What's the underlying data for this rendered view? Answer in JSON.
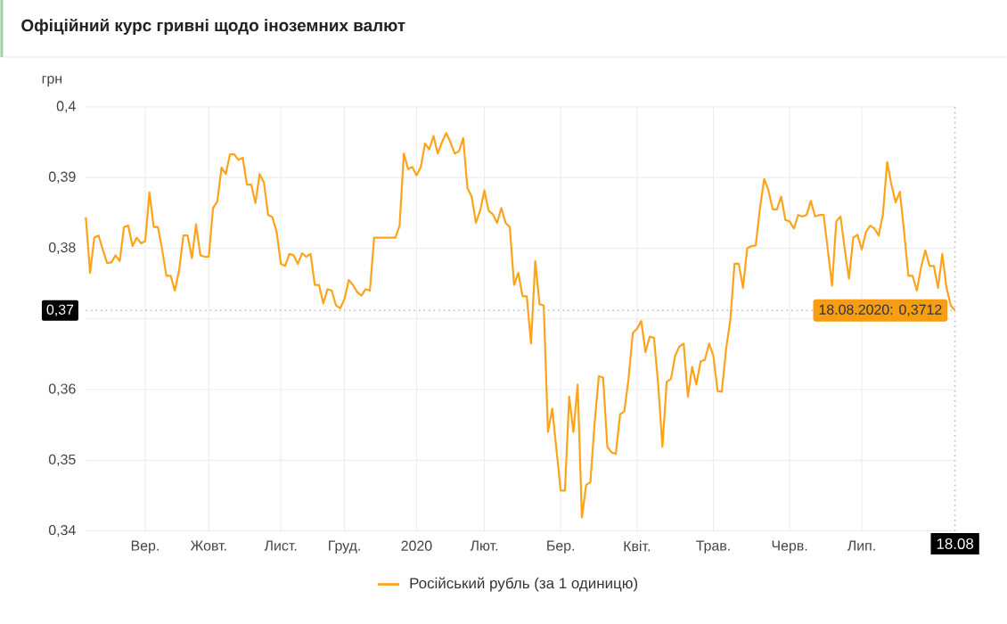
{
  "chart_data": {
    "type": "line",
    "title": "Офіційний курс гривні щодо іноземних валют",
    "ylabel": "грн",
    "ylim": [
      0.34,
      0.4
    ],
    "yticks": [
      {
        "value": 0.34,
        "label": "0,34"
      },
      {
        "value": 0.35,
        "label": "0,35"
      },
      {
        "value": 0.36,
        "label": "0,36"
      },
      {
        "value": 0.37,
        "label": null
      },
      {
        "value": 0.38,
        "label": "0,38"
      },
      {
        "value": 0.39,
        "label": "0,39"
      },
      {
        "value": 0.4,
        "label": "0,4"
      }
    ],
    "grid": true,
    "legend": "bottom",
    "ref_lines": [
      {
        "axis": "y",
        "value": 0.3712,
        "label": "0,37",
        "color": "#bbbbbb",
        "line_style": "dotted"
      }
    ],
    "annotations": [
      {
        "text": "18.08.2020: 0,3712",
        "y": 0.3712
      },
      "18.08"
    ],
    "categories": [
      null,
      null,
      null,
      null,
      null,
      null,
      null,
      null,
      null,
      null,
      null,
      null,
      null,
      null,
      "Вер.",
      null,
      null,
      null,
      null,
      null,
      null,
      null,
      null,
      null,
      null,
      null,
      null,
      null,
      null,
      "Жовт.",
      null,
      null,
      null,
      null,
      null,
      null,
      null,
      null,
      null,
      null,
      null,
      null,
      null,
      null,
      null,
      null,
      "Лист.",
      null,
      null,
      null,
      null,
      null,
      null,
      null,
      null,
      null,
      null,
      null,
      null,
      null,
      null,
      "Груд.",
      null,
      null,
      null,
      null,
      null,
      null,
      null,
      null,
      null,
      null,
      null,
      null,
      null,
      null,
      null,
      null,
      "2020",
      null,
      null,
      null,
      null,
      null,
      null,
      null,
      null,
      null,
      null,
      null,
      null,
      null,
      null,
      null,
      "Лют.",
      null,
      null,
      null,
      null,
      null,
      null,
      null,
      null,
      null,
      null,
      null,
      null,
      null,
      null,
      null,
      null,
      null,
      "Бер.",
      null,
      null,
      null,
      null,
      null,
      null,
      null,
      null,
      null,
      null,
      null,
      null,
      null,
      null,
      null,
      null,
      null,
      "Квіт.",
      null,
      null,
      null,
      null,
      null,
      null,
      null,
      null,
      null,
      null,
      null,
      null,
      null,
      null,
      null,
      null,
      null,
      "Трав.",
      null,
      null,
      null,
      null,
      null,
      null,
      null,
      null,
      null,
      null,
      null,
      null,
      null,
      null,
      null,
      null,
      null,
      "Черв.",
      null,
      null,
      null,
      null,
      null,
      null,
      null,
      null,
      null,
      null,
      null,
      null,
      null,
      null,
      null,
      null,
      "Лип.",
      null,
      null,
      null,
      null,
      null,
      null,
      null,
      null,
      null,
      null,
      null,
      null,
      null,
      null,
      null,
      null,
      null,
      null,
      null,
      null,
      null,
      null
    ],
    "series": [
      {
        "name": "Російський рубль (за 1 одиницю)",
        "color": "#ffa31a",
        "values": [
          0.3844,
          0.3765,
          0.3815,
          0.3818,
          0.3798,
          0.3779,
          0.378,
          0.379,
          0.3782,
          0.383,
          0.3832,
          0.3803,
          0.3815,
          0.3807,
          0.381,
          0.3879,
          0.383,
          0.383,
          0.3798,
          0.3761,
          0.3761,
          0.374,
          0.3769,
          0.3818,
          0.3818,
          0.3786,
          0.3834,
          0.379,
          0.3788,
          0.3788,
          0.3857,
          0.3866,
          0.3914,
          0.3905,
          0.3933,
          0.3933,
          0.3925,
          0.3928,
          0.389,
          0.389,
          0.3864,
          0.3905,
          0.3893,
          0.3847,
          0.3844,
          0.3823,
          0.3778,
          0.3775,
          0.3792,
          0.379,
          0.3778,
          0.3793,
          0.3788,
          0.3792,
          0.3748,
          0.3748,
          0.3722,
          0.3742,
          0.374,
          0.3719,
          0.3715,
          0.3728,
          0.3755,
          0.3748,
          0.3738,
          0.3733,
          0.3742,
          0.374,
          0.3815,
          0.3815,
          0.3815,
          0.3815,
          0.3815,
          0.3815,
          0.3832,
          0.3934,
          0.3912,
          0.3915,
          0.3903,
          0.3915,
          0.3948,
          0.394,
          0.3959,
          0.3934,
          0.395,
          0.3963,
          0.395,
          0.3934,
          0.3937,
          0.3956,
          0.3885,
          0.3873,
          0.3836,
          0.3853,
          0.3882,
          0.3853,
          0.3848,
          0.3836,
          0.3857,
          0.3836,
          0.383,
          0.3748,
          0.3765,
          0.3732,
          0.3732,
          0.3665,
          0.3782,
          0.3721,
          0.3719,
          0.354,
          0.3573,
          0.3515,
          0.3457,
          0.3457,
          0.359,
          0.354,
          0.3607,
          0.3419,
          0.3465,
          0.3469,
          0.3553,
          0.3619,
          0.3617,
          0.3519,
          0.3511,
          0.3509,
          0.3565,
          0.3569,
          0.3615,
          0.368,
          0.3686,
          0.3697,
          0.3653,
          0.3675,
          0.3673,
          0.3607,
          0.3519,
          0.3611,
          0.3615,
          0.3648,
          0.3661,
          0.3665,
          0.359,
          0.3632,
          0.3607,
          0.364,
          0.3642,
          0.3665,
          0.3648,
          0.3598,
          0.3597,
          0.3657,
          0.3698,
          0.3778,
          0.3778,
          0.3744,
          0.38,
          0.3803,
          0.3804,
          0.3857,
          0.3898,
          0.3882,
          0.3855,
          0.3855,
          0.3873,
          0.384,
          0.3838,
          0.3828,
          0.3847,
          0.3845,
          0.3847,
          0.3867,
          0.3845,
          0.3847,
          0.3847,
          0.3798,
          0.3747,
          0.3838,
          0.3845,
          0.3798,
          0.3757,
          0.3815,
          0.3819,
          0.3798,
          0.3823,
          0.3832,
          0.3828,
          0.3818,
          0.3848,
          0.3922,
          0.389,
          0.3865,
          0.388,
          0.3823,
          0.3761,
          0.3761,
          0.374,
          0.3773,
          0.3797,
          0.3775,
          0.3775,
          0.3744,
          0.3792,
          0.3744,
          0.3719,
          0.3712
        ]
      }
    ]
  }
}
